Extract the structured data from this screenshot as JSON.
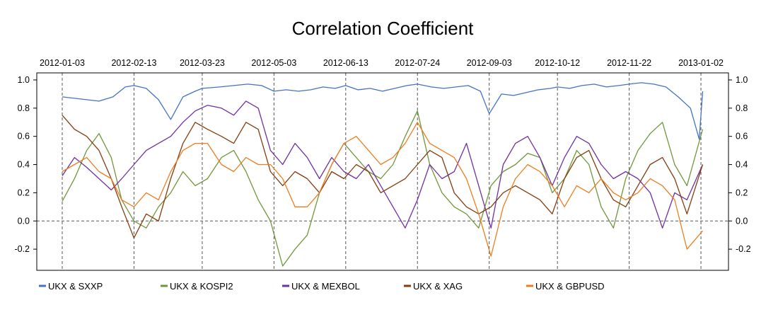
{
  "chart_data": {
    "type": "line",
    "title": "Correlation Coefficient",
    "xlabel": "",
    "ylabel": "",
    "x_ticks": [
      "2012-01-03",
      "2012-02-13",
      "2012-03-23",
      "2012-05-03",
      "2012-06-13",
      "2012-07-24",
      "2012-09-03",
      "2012-10-12",
      "2012-11-22",
      "2013-01-02"
    ],
    "x_range": [
      "2012-01-03",
      "2013-01-04"
    ],
    "y_ticks": [
      "1.0",
      "0.8",
      "0.6",
      "0.4",
      "0.2",
      "0.0",
      "-0.2"
    ],
    "ylim": [
      -0.35,
      1.05
    ],
    "reference_line": 0.0,
    "grid": "vertical dashed lines at x ticks",
    "legend_position": "bottom",
    "series": [
      {
        "name": "UKX & SXXP",
        "color": "#4472c4",
        "x": [
          "2012-01-03",
          "2012-01-10",
          "2012-01-17",
          "2012-01-24",
          "2012-02-01",
          "2012-02-08",
          "2012-02-13",
          "2012-02-20",
          "2012-02-27",
          "2012-03-05",
          "2012-03-12",
          "2012-03-19",
          "2012-03-23",
          "2012-04-02",
          "2012-04-10",
          "2012-04-18",
          "2012-04-26",
          "2012-05-03",
          "2012-05-10",
          "2012-05-17",
          "2012-05-24",
          "2012-05-31",
          "2012-06-07",
          "2012-06-13",
          "2012-06-20",
          "2012-06-27",
          "2012-07-04",
          "2012-07-11",
          "2012-07-18",
          "2012-07-24",
          "2012-08-01",
          "2012-08-08",
          "2012-08-15",
          "2012-08-22",
          "2012-08-29",
          "2012-09-03",
          "2012-09-10",
          "2012-09-17",
          "2012-09-24",
          "2012-10-01",
          "2012-10-08",
          "2012-10-12",
          "2012-10-19",
          "2012-10-26",
          "2012-11-02",
          "2012-11-09",
          "2012-11-16",
          "2012-11-22",
          "2012-11-29",
          "2012-12-06",
          "2012-12-13",
          "2012-12-20",
          "2012-12-27",
          "2013-01-01",
          "2013-01-03"
        ],
        "values": [
          0.88,
          0.87,
          0.86,
          0.85,
          0.88,
          0.95,
          0.96,
          0.94,
          0.86,
          0.72,
          0.88,
          0.92,
          0.94,
          0.95,
          0.96,
          0.97,
          0.96,
          0.92,
          0.93,
          0.92,
          0.93,
          0.95,
          0.94,
          0.96,
          0.93,
          0.94,
          0.92,
          0.94,
          0.96,
          0.97,
          0.95,
          0.94,
          0.95,
          0.96,
          0.92,
          0.76,
          0.9,
          0.89,
          0.91,
          0.93,
          0.94,
          0.95,
          0.94,
          0.96,
          0.97,
          0.95,
          0.96,
          0.97,
          0.98,
          0.97,
          0.95,
          0.88,
          0.8,
          0.58,
          0.92
        ]
      },
      {
        "name": "UKX & KOSPI2",
        "color": "#70963a",
        "x": [
          "2012-01-03",
          "2012-01-10",
          "2012-01-17",
          "2012-01-24",
          "2012-01-31",
          "2012-02-06",
          "2012-02-13",
          "2012-02-20",
          "2012-02-27",
          "2012-03-05",
          "2012-03-12",
          "2012-03-19",
          "2012-03-26",
          "2012-04-03",
          "2012-04-10",
          "2012-04-17",
          "2012-04-24",
          "2012-05-01",
          "2012-05-08",
          "2012-05-15",
          "2012-05-22",
          "2012-05-29",
          "2012-06-05",
          "2012-06-12",
          "2012-06-19",
          "2012-06-26",
          "2012-07-03",
          "2012-07-10",
          "2012-07-17",
          "2012-07-24",
          "2012-07-31",
          "2012-08-07",
          "2012-08-14",
          "2012-08-21",
          "2012-08-28",
          "2012-09-04",
          "2012-09-11",
          "2012-09-18",
          "2012-09-25",
          "2012-10-02",
          "2012-10-09",
          "2012-10-16",
          "2012-10-23",
          "2012-10-30",
          "2012-11-06",
          "2012-11-13",
          "2012-11-20",
          "2012-11-27",
          "2012-12-04",
          "2012-12-11",
          "2012-12-18",
          "2012-12-25",
          "2013-01-03"
        ],
        "values": [
          0.14,
          0.3,
          0.5,
          0.62,
          0.45,
          0.15,
          0.0,
          -0.05,
          0.1,
          0.2,
          0.35,
          0.25,
          0.3,
          0.45,
          0.5,
          0.35,
          0.15,
          0.0,
          -0.32,
          -0.2,
          -0.1,
          0.2,
          0.4,
          0.55,
          0.45,
          0.35,
          0.3,
          0.4,
          0.6,
          0.78,
          0.4,
          0.2,
          0.1,
          0.05,
          -0.05,
          0.25,
          0.35,
          0.4,
          0.48,
          0.45,
          0.2,
          0.3,
          0.5,
          0.4,
          0.1,
          -0.05,
          0.3,
          0.5,
          0.62,
          0.7,
          0.4,
          0.25,
          0.65
        ]
      },
      {
        "name": "UKX & MEXBOL",
        "color": "#7030a0",
        "x": [
          "2012-01-03",
          "2012-01-10",
          "2012-01-17",
          "2012-01-24",
          "2012-01-31",
          "2012-02-06",
          "2012-02-13",
          "2012-02-20",
          "2012-02-27",
          "2012-03-05",
          "2012-03-12",
          "2012-03-19",
          "2012-03-26",
          "2012-04-03",
          "2012-04-10",
          "2012-04-17",
          "2012-04-24",
          "2012-05-01",
          "2012-05-08",
          "2012-05-15",
          "2012-05-22",
          "2012-05-29",
          "2012-06-05",
          "2012-06-12",
          "2012-06-19",
          "2012-06-26",
          "2012-07-03",
          "2012-07-10",
          "2012-07-17",
          "2012-07-24",
          "2012-07-31",
          "2012-08-07",
          "2012-08-14",
          "2012-08-21",
          "2012-08-28",
          "2012-09-04",
          "2012-09-11",
          "2012-09-18",
          "2012-09-25",
          "2012-10-02",
          "2012-10-09",
          "2012-10-16",
          "2012-10-23",
          "2012-10-30",
          "2012-11-06",
          "2012-11-13",
          "2012-11-20",
          "2012-11-27",
          "2012-12-04",
          "2012-12-11",
          "2012-12-18",
          "2012-12-25",
          "2013-01-03"
        ],
        "values": [
          0.32,
          0.45,
          0.38,
          0.3,
          0.22,
          0.3,
          0.4,
          0.5,
          0.55,
          0.6,
          0.7,
          0.78,
          0.82,
          0.8,
          0.75,
          0.85,
          0.8,
          0.5,
          0.4,
          0.55,
          0.45,
          0.3,
          0.45,
          0.35,
          0.3,
          0.4,
          0.25,
          0.1,
          -0.05,
          0.15,
          0.4,
          0.3,
          0.35,
          0.55,
          0.25,
          -0.05,
          0.4,
          0.55,
          0.6,
          0.45,
          0.25,
          0.45,
          0.6,
          0.55,
          0.4,
          0.3,
          0.35,
          0.3,
          0.2,
          -0.05,
          0.2,
          0.15,
          0.4
        ]
      },
      {
        "name": "UKX & XAG",
        "color": "#843c0c",
        "x": [
          "2012-01-03",
          "2012-01-10",
          "2012-01-17",
          "2012-01-24",
          "2012-01-31",
          "2012-02-06",
          "2012-02-13",
          "2012-02-20",
          "2012-02-27",
          "2012-03-05",
          "2012-03-12",
          "2012-03-19",
          "2012-03-26",
          "2012-04-03",
          "2012-04-10",
          "2012-04-17",
          "2012-04-24",
          "2012-05-01",
          "2012-05-08",
          "2012-05-15",
          "2012-05-22",
          "2012-05-29",
          "2012-06-05",
          "2012-06-12",
          "2012-06-19",
          "2012-06-26",
          "2012-07-03",
          "2012-07-10",
          "2012-07-17",
          "2012-07-24",
          "2012-07-31",
          "2012-08-07",
          "2012-08-14",
          "2012-08-21",
          "2012-08-28",
          "2012-09-04",
          "2012-09-11",
          "2012-09-18",
          "2012-09-25",
          "2012-10-02",
          "2012-10-09",
          "2012-10-16",
          "2012-10-23",
          "2012-10-30",
          "2012-11-06",
          "2012-11-13",
          "2012-11-20",
          "2012-11-27",
          "2012-12-04",
          "2012-12-11",
          "2012-12-18",
          "2012-12-25",
          "2013-01-03"
        ],
        "values": [
          0.75,
          0.65,
          0.6,
          0.5,
          0.3,
          0.1,
          -0.12,
          0.05,
          0.0,
          0.3,
          0.55,
          0.7,
          0.65,
          0.6,
          0.55,
          0.7,
          0.65,
          0.35,
          0.25,
          0.35,
          0.3,
          0.2,
          0.35,
          0.3,
          0.4,
          0.35,
          0.2,
          0.25,
          0.3,
          0.4,
          0.5,
          0.45,
          0.2,
          0.1,
          0.05,
          0.1,
          0.2,
          0.25,
          0.2,
          0.15,
          0.05,
          0.3,
          0.45,
          0.5,
          0.3,
          0.15,
          0.1,
          0.25,
          0.4,
          0.45,
          0.3,
          0.05,
          0.4
        ]
      },
      {
        "name": "UKX & GBPUSD",
        "color": "#ed7d1e",
        "x": [
          "2012-01-03",
          "2012-01-10",
          "2012-01-17",
          "2012-01-24",
          "2012-01-31",
          "2012-02-06",
          "2012-02-13",
          "2012-02-20",
          "2012-02-27",
          "2012-03-05",
          "2012-03-12",
          "2012-03-19",
          "2012-03-26",
          "2012-04-03",
          "2012-04-10",
          "2012-04-17",
          "2012-04-24",
          "2012-05-01",
          "2012-05-08",
          "2012-05-15",
          "2012-05-22",
          "2012-05-29",
          "2012-06-05",
          "2012-06-12",
          "2012-06-19",
          "2012-06-26",
          "2012-07-03",
          "2012-07-10",
          "2012-07-17",
          "2012-07-24",
          "2012-07-31",
          "2012-08-07",
          "2012-08-14",
          "2012-08-21",
          "2012-08-28",
          "2012-09-04",
          "2012-09-11",
          "2012-09-18",
          "2012-09-25",
          "2012-10-02",
          "2012-10-09",
          "2012-10-16",
          "2012-10-23",
          "2012-10-30",
          "2012-11-06",
          "2012-11-13",
          "2012-11-20",
          "2012-11-27",
          "2012-12-04",
          "2012-12-11",
          "2012-12-18",
          "2012-12-25",
          "2013-01-03"
        ],
        "values": [
          0.35,
          0.4,
          0.45,
          0.35,
          0.3,
          0.15,
          0.1,
          0.2,
          0.15,
          0.35,
          0.5,
          0.55,
          0.55,
          0.4,
          0.35,
          0.45,
          0.4,
          0.4,
          0.3,
          0.1,
          0.1,
          0.2,
          0.4,
          0.55,
          0.6,
          0.5,
          0.4,
          0.45,
          0.55,
          0.7,
          0.55,
          0.5,
          0.45,
          0.3,
          0.05,
          -0.25,
          0.1,
          0.3,
          0.4,
          0.35,
          0.25,
          0.1,
          0.25,
          0.2,
          0.3,
          0.2,
          0.15,
          0.2,
          0.3,
          0.25,
          0.15,
          -0.2,
          -0.07
        ]
      }
    ]
  }
}
